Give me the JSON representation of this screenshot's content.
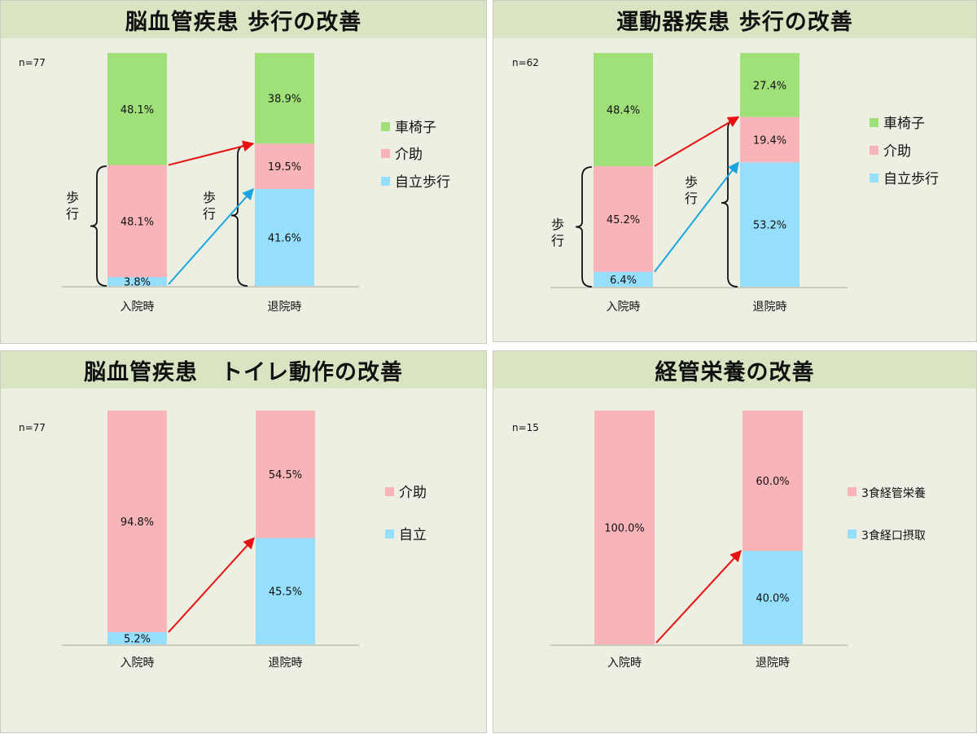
{
  "colors": {
    "wheelchair": "#9fe079",
    "assist": "#f8b4b9",
    "independent": "#96dffc",
    "arrow_red": "#e81010",
    "arrow_blue": "#19a6e0",
    "title_bg": "#d8e4c2",
    "panel_bg": "#ecefe2"
  },
  "chart_data": [
    {
      "type": "bar",
      "stacked": true,
      "title": "脳血管疾患 歩行の改善",
      "n_label": "n=77",
      "categories": [
        "入院時",
        "退院時"
      ],
      "series": [
        {
          "name": "自立歩行",
          "color_key": "independent",
          "values": [
            3.8,
            41.6
          ],
          "labels": [
            "3.8%",
            "41.6%"
          ]
        },
        {
          "name": "介助",
          "color_key": "assist",
          "values": [
            48.1,
            19.5
          ],
          "labels": [
            "48.1%",
            "19.5%"
          ]
        },
        {
          "name": "車椅子",
          "color_key": "wheelchair",
          "values": [
            48.1,
            38.9
          ],
          "labels": [
            "48.1%",
            "38.9%"
          ]
        }
      ],
      "legend_order": [
        "車椅子",
        "介助",
        "自立歩行"
      ],
      "brace_label": "歩行",
      "arrows": [
        {
          "color_key": "arrow_red",
          "from_bar": 0,
          "from_level": 51.9,
          "to_bar": 1,
          "to_level": 61.1
        },
        {
          "color_key": "arrow_blue",
          "from_bar": 0,
          "from_level": 0,
          "to_bar": 1,
          "to_level": 41.6
        }
      ]
    },
    {
      "type": "bar",
      "stacked": true,
      "title": "運動器疾患 歩行の改善",
      "n_label": "n=62",
      "categories": [
        "入院時",
        "退院時"
      ],
      "series": [
        {
          "name": "自立歩行",
          "color_key": "independent",
          "values": [
            6.4,
            53.2
          ],
          "labels": [
            "6.4%",
            "53.2%"
          ]
        },
        {
          "name": "介助",
          "color_key": "assist",
          "values": [
            45.2,
            19.4
          ],
          "labels": [
            "45.2%",
            "19.4%"
          ]
        },
        {
          "name": "車椅子",
          "color_key": "wheelchair",
          "values": [
            48.4,
            27.4
          ],
          "labels": [
            "48.4%",
            "27.4%"
          ]
        }
      ],
      "legend_order": [
        "車椅子",
        "介助",
        "自立歩行"
      ],
      "brace_label": "歩行",
      "arrows": [
        {
          "color_key": "arrow_red",
          "from_bar": 0,
          "from_level": 51.6,
          "to_bar": 1,
          "to_level": 72.6
        },
        {
          "color_key": "arrow_blue",
          "from_bar": 0,
          "from_level": 6.4,
          "to_bar": 1,
          "to_level": 53.2
        }
      ]
    },
    {
      "type": "bar",
      "stacked": true,
      "title": "脳血管疾患　トイレ動作の改善",
      "n_label": "n=77",
      "categories": [
        "入院時",
        "退院時"
      ],
      "series": [
        {
          "name": "自立",
          "color_key": "independent",
          "values": [
            5.2,
            45.5
          ],
          "labels": [
            "5.2%",
            "45.5%"
          ]
        },
        {
          "name": "介助",
          "color_key": "assist",
          "values": [
            94.8,
            54.5
          ],
          "labels": [
            "94.8%",
            "54.5%"
          ]
        }
      ],
      "legend_order": [
        "介助",
        "自立"
      ],
      "brace_label": "",
      "arrows": [
        {
          "color_key": "arrow_red",
          "from_bar": 0,
          "from_level": 5.2,
          "to_bar": 1,
          "to_level": 45.5
        }
      ]
    },
    {
      "type": "bar",
      "stacked": true,
      "title": "経管栄養の改善",
      "n_label": "n=15",
      "categories": [
        "入院時",
        "退院時"
      ],
      "series": [
        {
          "name": "3食経口摂取",
          "color_key": "independent",
          "values": [
            0,
            40.0
          ],
          "labels": [
            "",
            "40.0%"
          ]
        },
        {
          "name": "3食経管栄養",
          "color_key": "assist",
          "values": [
            100.0,
            60.0
          ],
          "labels": [
            "100.0%",
            "60.0%"
          ]
        }
      ],
      "legend_order": [
        "3食経管栄養",
        "3食経口摂取"
      ],
      "brace_label": "",
      "arrows": [
        {
          "color_key": "arrow_red",
          "from_bar": 0,
          "from_level": 0,
          "to_bar": 1,
          "to_level": 40.0
        }
      ]
    }
  ]
}
